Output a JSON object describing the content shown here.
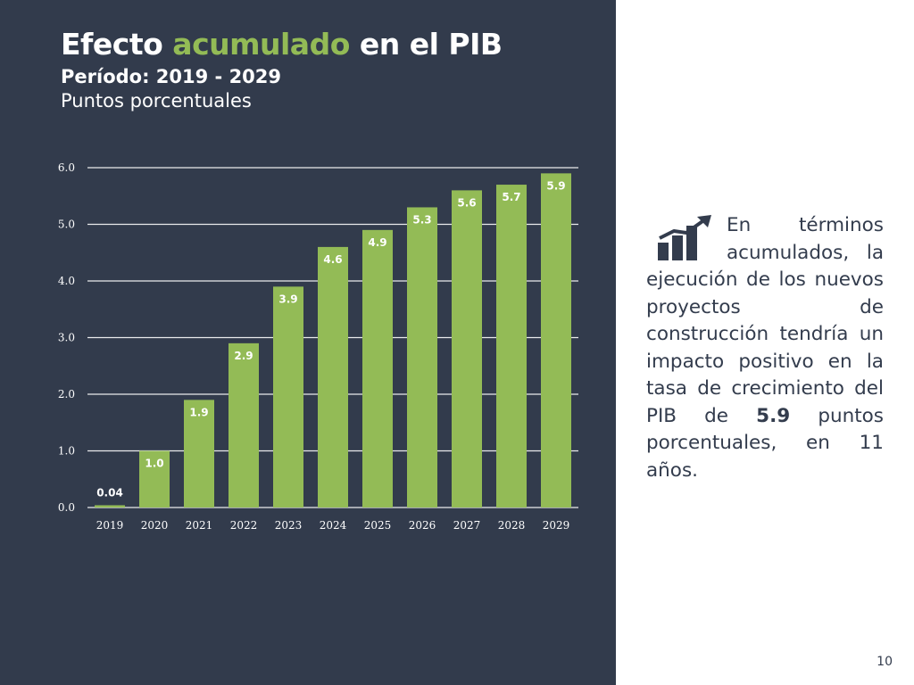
{
  "slide": {
    "title_part1": "Efecto",
    "title_accent": "acumulado",
    "title_part2": "en el PIB",
    "subtitle": "Período: 2019 - 2029",
    "units": "Puntos porcentuales",
    "page_number": "10"
  },
  "sidebar": {
    "icon": "growth-bar-chart-icon",
    "text_1": "En términos acumulados, la ejecución de los nuevos proyectos de construcción tendría un impacto positivo en la tasa de crecimiento del PIB de",
    "highlight": "5.9",
    "text_2": "puntos porcentuales, en 11 años."
  },
  "colors": {
    "background_dark": "#323b4c",
    "accent_green": "#93bb56",
    "bar_fill": "#93bb56",
    "text_light": "#ffffff",
    "text_dark": "#333c4d"
  },
  "chart_data": {
    "type": "bar",
    "categories": [
      "2019",
      "2020",
      "2021",
      "2022",
      "2023",
      "2024",
      "2025",
      "2026",
      "2027",
      "2028",
      "2029"
    ],
    "values": [
      0.04,
      1.0,
      1.9,
      2.9,
      3.9,
      4.6,
      4.9,
      5.3,
      5.6,
      5.7,
      5.9
    ],
    "value_labels": [
      "0.04",
      "1.0",
      "1.9",
      "2.9",
      "3.9",
      "4.6",
      "4.9",
      "5.3",
      "5.6",
      "5.7",
      "5.9"
    ],
    "ylim": [
      0,
      6
    ],
    "yticks": [
      "0.0",
      "1.0",
      "2.0",
      "3.0",
      "4.0",
      "5.0",
      "6.0"
    ],
    "grid": true,
    "legend": false
  }
}
